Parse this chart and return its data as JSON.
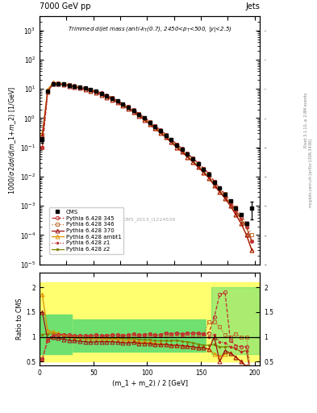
{
  "title_top_left": "7000 GeV pp",
  "title_top_right": "Jets",
  "plot_title": "Trimmed dijet mass (anti-k_{T}(0.7), 2450<p_{T}<500, |y|<2.5)",
  "ylabel_main": "1000/σ 2dσ/d(m_1 + m_2) [1/GeV]",
  "ylabel_ratio": "Ratio to CMS",
  "xlabel": "(m_1 + m_2) / 2 [GeV]",
  "watermark": "CMS_2013_I1224539",
  "rivet_label": "Rivet 3.1.10, ≥ 2.8M events",
  "arxiv_label": "mcplots.cern.ch [arXiv:1306.3436]",
  "xlim": [
    0,
    205
  ],
  "ylim_main_lo": 1e-05,
  "ylim_main_hi": 3000,
  "ylim_ratio_lo": 0.42,
  "ylim_ratio_hi": 2.3,
  "x_data": [
    2.5,
    7.5,
    12.5,
    17.5,
    22.5,
    27.5,
    32.5,
    37.5,
    42.5,
    47.5,
    52.5,
    57.5,
    62.5,
    67.5,
    72.5,
    77.5,
    82.5,
    87.5,
    92.5,
    97.5,
    102.5,
    107.5,
    112.5,
    117.5,
    122.5,
    127.5,
    132.5,
    137.5,
    142.5,
    147.5,
    152.5,
    157.5,
    162.5,
    167.5,
    172.5,
    177.5,
    182.5,
    187.5,
    192.5,
    197.5
  ],
  "cms_y": [
    0.18,
    8.5,
    15.0,
    15.0,
    14.5,
    13.5,
    12.5,
    11.5,
    10.5,
    9.5,
    8.2,
    7.0,
    5.8,
    4.8,
    3.8,
    3.0,
    2.4,
    1.8,
    1.35,
    1.0,
    0.72,
    0.52,
    0.37,
    0.26,
    0.18,
    0.12,
    0.085,
    0.058,
    0.04,
    0.027,
    0.018,
    0.012,
    0.0065,
    0.0042,
    0.0025,
    0.0015,
    0.00085,
    0.0005,
    0.00025,
    0.00085
  ],
  "cms_yerr": [
    0.04,
    0.4,
    0.8,
    0.7,
    0.6,
    0.5,
    0.4,
    0.35,
    0.3,
    0.25,
    0.22,
    0.18,
    0.15,
    0.12,
    0.1,
    0.08,
    0.06,
    0.045,
    0.035,
    0.025,
    0.018,
    0.013,
    0.009,
    0.007,
    0.005,
    0.003,
    0.002,
    0.0015,
    0.001,
    0.0007,
    0.0005,
    0.0004,
    0.0002,
    0.00015,
    0.0001,
    8e-05,
    5e-05,
    4e-05,
    3e-05,
    0.0005
  ],
  "p345_y": [
    0.1,
    7.8,
    15.5,
    15.8,
    15.2,
    14.0,
    12.8,
    11.8,
    10.8,
    9.8,
    8.5,
    7.2,
    6.0,
    5.0,
    4.0,
    3.1,
    2.5,
    1.9,
    1.4,
    1.05,
    0.76,
    0.54,
    0.39,
    0.28,
    0.19,
    0.13,
    0.09,
    0.062,
    0.043,
    0.029,
    0.019,
    0.013,
    0.0068,
    0.004,
    0.0025,
    0.0014,
    0.0007,
    0.0004,
    0.0002,
    6e-05
  ],
  "p346_y": [
    0.1,
    8.0,
    15.2,
    15.5,
    15.0,
    13.8,
    12.6,
    11.6,
    10.6,
    9.6,
    8.3,
    7.1,
    5.9,
    4.9,
    3.9,
    3.05,
    2.45,
    1.85,
    1.38,
    1.02,
    0.74,
    0.53,
    0.38,
    0.27,
    0.185,
    0.127,
    0.088,
    0.06,
    0.042,
    0.028,
    0.019,
    0.012,
    0.007,
    0.0042,
    0.0026,
    0.0015,
    0.0009,
    0.0005,
    0.00025,
    0.0001
  ],
  "p370_y": [
    0.25,
    8.0,
    14.8,
    14.5,
    13.8,
    12.6,
    11.5,
    10.5,
    9.5,
    8.5,
    7.4,
    6.3,
    5.2,
    4.3,
    3.4,
    2.65,
    2.1,
    1.6,
    1.18,
    0.87,
    0.62,
    0.44,
    0.31,
    0.22,
    0.15,
    0.1,
    0.07,
    0.047,
    0.032,
    0.021,
    0.014,
    0.009,
    0.005,
    0.003,
    0.0018,
    0.001,
    0.0005,
    0.00025,
    0.0001,
    3e-05
  ],
  "pambt1_y": [
    0.3,
    9.5,
    16.5,
    16.0,
    15.0,
    13.8,
    12.5,
    11.4,
    10.3,
    9.2,
    7.9,
    6.7,
    5.5,
    4.55,
    3.6,
    2.8,
    2.2,
    1.65,
    1.22,
    0.89,
    0.64,
    0.45,
    0.32,
    0.22,
    0.15,
    0.1,
    0.07,
    0.047,
    0.032,
    0.021,
    0.014,
    0.009,
    0.005,
    0.003,
    0.0018,
    0.001,
    0.0005,
    0.00025,
    0.0001,
    3e-05
  ],
  "pz1_y": [
    0.1,
    8.2,
    15.5,
    15.8,
    15.2,
    14.0,
    12.8,
    11.8,
    10.8,
    9.8,
    8.5,
    7.2,
    6.0,
    5.0,
    4.0,
    3.1,
    2.5,
    1.9,
    1.4,
    1.05,
    0.76,
    0.54,
    0.39,
    0.28,
    0.19,
    0.13,
    0.09,
    0.062,
    0.043,
    0.029,
    0.019,
    0.012,
    0.0068,
    0.0038,
    0.0022,
    0.0012,
    0.00065,
    0.00035,
    0.00018,
    6e-05
  ],
  "pz2_y": [
    0.2,
    9.0,
    16.0,
    15.8,
    14.8,
    13.5,
    12.3,
    11.2,
    10.2,
    9.2,
    8.0,
    6.8,
    5.6,
    4.65,
    3.7,
    2.9,
    2.3,
    1.72,
    1.28,
    0.94,
    0.68,
    0.48,
    0.34,
    0.24,
    0.165,
    0.112,
    0.077,
    0.052,
    0.035,
    0.023,
    0.015,
    0.01,
    0.0055,
    0.0033,
    0.002,
    0.0012,
    0.00065,
    0.00035,
    0.00018,
    6e-05
  ],
  "ratio_p345": [
    0.55,
    0.92,
    1.03,
    1.05,
    1.05,
    1.04,
    1.02,
    1.03,
    1.03,
    1.03,
    1.04,
    1.03,
    1.03,
    1.04,
    1.05,
    1.03,
    1.04,
    1.06,
    1.04,
    1.05,
    1.06,
    1.04,
    1.05,
    1.08,
    1.06,
    1.08,
    1.06,
    1.07,
    1.08,
    1.07,
    1.06,
    1.08,
    1.4,
    1.85,
    1.9,
    0.93,
    0.82,
    0.8,
    0.8,
    0.07
  ],
  "ratio_p346": [
    0.55,
    0.94,
    1.01,
    1.03,
    1.03,
    1.02,
    1.01,
    1.01,
    1.01,
    1.01,
    1.01,
    1.01,
    1.02,
    1.02,
    1.03,
    1.02,
    1.02,
    1.03,
    1.02,
    1.02,
    1.03,
    1.02,
    1.03,
    1.04,
    1.03,
    1.06,
    1.04,
    1.03,
    1.05,
    1.04,
    1.06,
    1.3,
    1.3,
    1.2,
    1.04,
    1.0,
    1.06,
    1.0,
    1.0,
    0.12
  ],
  "ratio_p370": [
    1.5,
    0.94,
    0.99,
    0.97,
    0.95,
    0.93,
    0.92,
    0.91,
    0.9,
    0.89,
    0.9,
    0.9,
    0.9,
    0.9,
    0.89,
    0.88,
    0.875,
    0.89,
    0.87,
    0.87,
    0.86,
    0.85,
    0.84,
    0.85,
    0.83,
    0.83,
    0.82,
    0.81,
    0.8,
    0.78,
    0.78,
    0.75,
    1.0,
    0.5,
    0.72,
    0.67,
    0.59,
    0.5,
    0.4,
    0.035
  ],
  "ratio_pambt1": [
    1.85,
    1.12,
    1.1,
    1.07,
    1.03,
    1.02,
    1.0,
    0.99,
    0.98,
    0.97,
    0.96,
    0.96,
    0.95,
    0.95,
    0.95,
    0.93,
    0.92,
    0.92,
    0.9,
    0.89,
    0.89,
    0.87,
    0.86,
    0.85,
    0.83,
    0.83,
    0.82,
    0.81,
    0.8,
    0.78,
    0.78,
    0.75,
    0.65,
    0.6,
    0.65,
    0.67,
    0.59,
    0.5,
    0.4,
    0.035
  ],
  "ratio_pz1": [
    0.55,
    0.97,
    1.03,
    1.05,
    1.05,
    1.04,
    1.02,
    1.03,
    1.03,
    1.03,
    1.04,
    1.03,
    1.03,
    1.04,
    1.05,
    1.03,
    1.04,
    1.06,
    1.04,
    1.05,
    1.06,
    1.04,
    1.05,
    1.08,
    1.06,
    1.08,
    1.06,
    1.07,
    1.08,
    1.07,
    1.06,
    1.0,
    1.05,
    0.9,
    0.88,
    0.8,
    0.76,
    0.7,
    0.72,
    0.07
  ],
  "ratio_pz2": [
    1.05,
    1.06,
    1.07,
    1.05,
    1.02,
    1.0,
    0.98,
    0.97,
    0.97,
    0.97,
    0.98,
    0.97,
    0.97,
    0.97,
    0.97,
    0.97,
    0.96,
    0.96,
    0.95,
    0.94,
    0.94,
    0.92,
    0.92,
    0.92,
    0.92,
    0.93,
    0.91,
    0.9,
    0.88,
    0.85,
    0.83,
    0.83,
    0.85,
    0.79,
    0.8,
    0.8,
    0.76,
    0.7,
    0.72,
    0.07
  ],
  "color_345": "#c03030",
  "color_346": "#c07030",
  "color_370": "#a01010",
  "color_ambt1": "#e09000",
  "color_z1": "#c03030",
  "color_z2": "#808000",
  "color_cms": "#000000",
  "color_yellow": "#ffff70",
  "color_green": "#70e070"
}
